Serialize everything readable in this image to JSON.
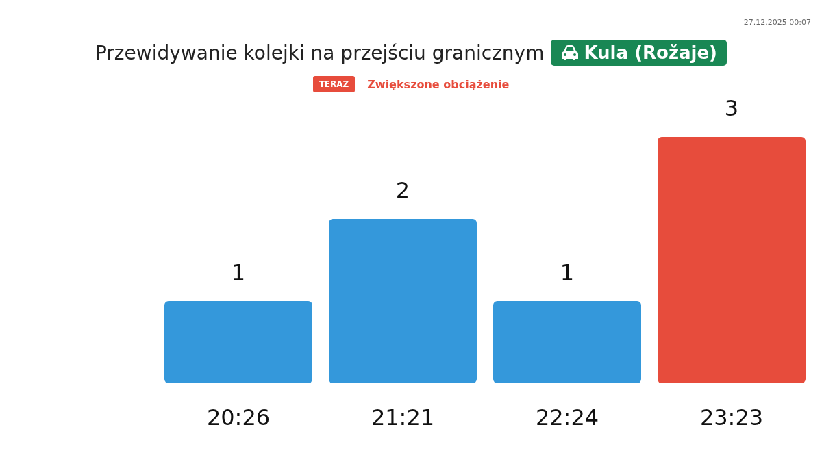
{
  "chart_data": {
    "type": "bar",
    "title": "Przewidywanie kolejki na przejściu granicznym",
    "subtitle": "Zwiększone obciążenie",
    "annotations": [
      "Kula (Rožaje)",
      "TERAZ",
      "27.12.2025 00:07"
    ],
    "categories": [
      "20:26",
      "21:21",
      "22:24",
      "23:23"
    ],
    "values": [
      1,
      2,
      1,
      3
    ],
    "colors": [
      "#3498db",
      "#3498db",
      "#3498db",
      "#e74c3c"
    ],
    "data_labels": true
  }
}
